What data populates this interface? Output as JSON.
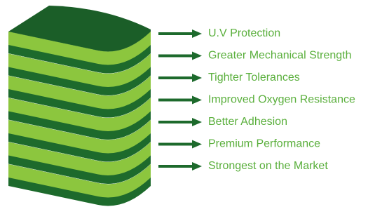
{
  "items": [
    "U.V Protection",
    "Greater Mechanical Strength",
    "Tighter Tolerances",
    "Improved Oxygen Resistance",
    "Better Adhesion",
    "Premium Performance",
    "Strongest on the Market"
  ]
}
